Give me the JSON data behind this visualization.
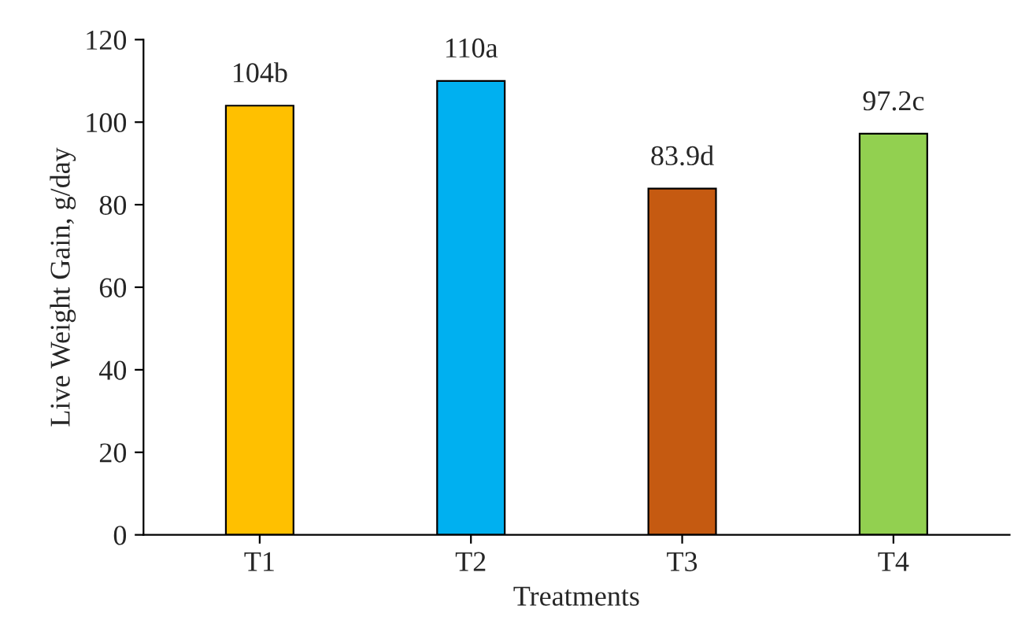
{
  "chart_data": {
    "type": "bar",
    "categories": [
      "T1",
      "T2",
      "T3",
      "T4"
    ],
    "values": [
      104,
      110,
      83.9,
      97.2
    ],
    "value_labels": [
      "104b",
      "110a",
      "83.9d",
      "97.2c"
    ],
    "colors": [
      "#ffc000",
      "#00b0f0",
      "#c55a11",
      "#92d050"
    ],
    "xlabel": "Treatments",
    "ylabel": "Live Weight Gain, g/day",
    "ylim": [
      0,
      120
    ],
    "yticks": [
      0,
      20,
      40,
      60,
      80,
      100,
      120
    ],
    "grid": false,
    "legend": false
  }
}
